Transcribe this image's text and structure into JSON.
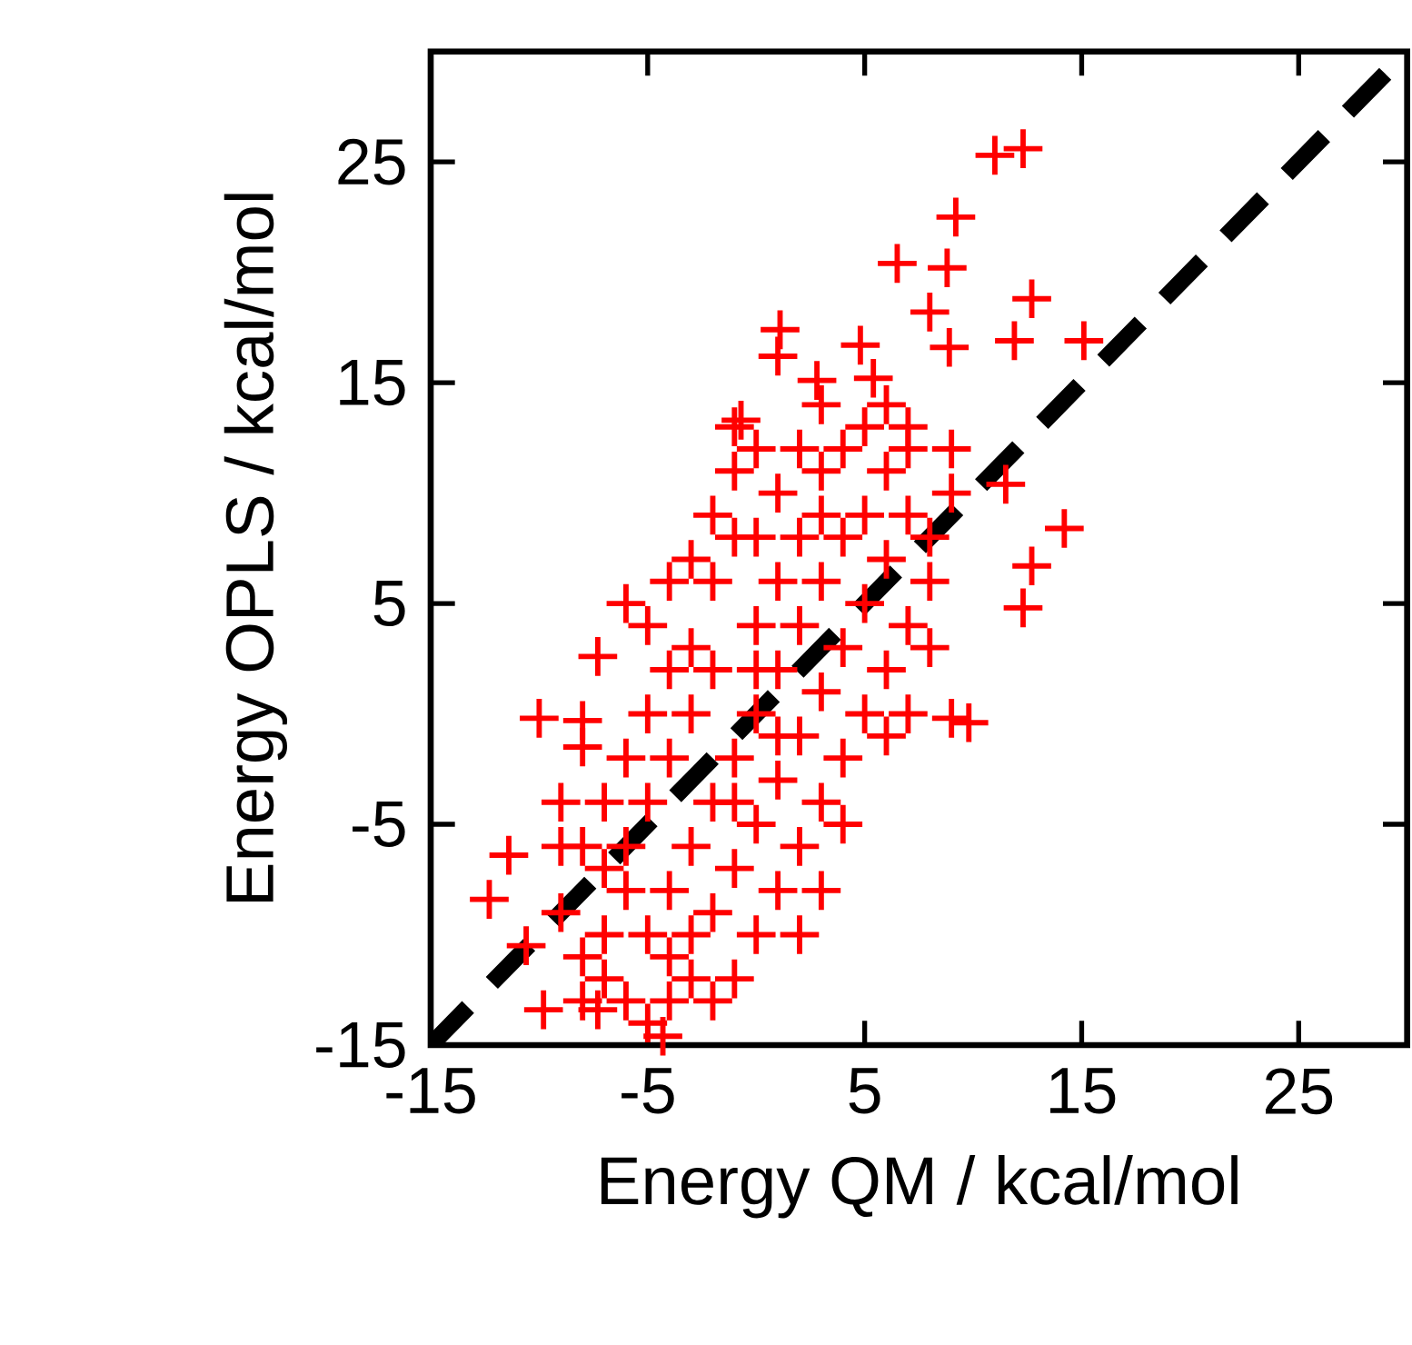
{
  "chart_data": {
    "type": "scatter",
    "xlabel": "Energy QM / kcal/mol",
    "ylabel": "Energy OPLS / kcal/mol",
    "xlim": [
      -15,
      30
    ],
    "ylim": [
      -15,
      30
    ],
    "xticks": [
      -15,
      -5,
      5,
      15,
      25
    ],
    "yticks": [
      -15,
      -5,
      5,
      15,
      25
    ],
    "series": [
      {
        "color": "#ff0000",
        "marker": "cross",
        "x": [
          12.3,
          11.0,
          9.2,
          6.5,
          8.8,
          8.0,
          8.9,
          12.7,
          15.1,
          11.9,
          1.1,
          1.0,
          4.8,
          2.8,
          5.4,
          -0.7,
          14.2,
          11.5,
          12.7,
          12.3,
          9.8,
          9.0,
          -7.3,
          -10.0,
          -8.0,
          -11.4,
          -12.3,
          -10.6,
          -9.8,
          -7.3,
          -4.3,
          -9,
          -8,
          -7,
          -6,
          -5,
          -4,
          -3,
          -2,
          -5,
          -6,
          -7,
          -8,
          -9,
          -7,
          -6,
          -5,
          -4,
          -5,
          -6,
          -4,
          -3,
          -2,
          -1,
          0,
          1,
          2,
          3,
          4,
          5,
          6,
          7,
          7,
          8,
          6,
          5,
          4,
          3,
          2,
          1,
          0,
          -1,
          -2,
          -3,
          -4,
          0,
          1,
          2,
          3,
          4,
          5,
          6,
          7,
          8,
          6,
          4,
          3,
          2,
          -1,
          -3,
          -2,
          -1,
          0,
          1,
          2,
          3,
          4,
          -2,
          -3,
          -4,
          -5,
          -6,
          -4,
          -2,
          0,
          -1,
          1,
          0,
          2,
          3,
          5,
          6,
          9,
          8,
          7,
          9,
          -1,
          1,
          0,
          -3,
          -7,
          -8,
          -1,
          3,
          7,
          -8,
          -9
        ],
        "values": [
          25.6,
          25.3,
          22.5,
          20.4,
          20.2,
          18.2,
          16.6,
          18.8,
          16.9,
          16.9,
          17.4,
          16.2,
          16.7,
          15.1,
          15.2,
          13.3,
          8.4,
          10.4,
          6.7,
          4.8,
          -0.4,
          -0.2,
          2.6,
          -0.2,
          -0.3,
          -6.4,
          -8.4,
          -10.5,
          -13.4,
          -13.4,
          -14.6,
          -9,
          -11,
          -12,
          -13,
          -14,
          -13,
          -12,
          -13,
          -10,
          -8,
          -7,
          -6,
          -4,
          -4,
          -2,
          0,
          2,
          4,
          5,
          6,
          7,
          9,
          11,
          12,
          10,
          12,
          11,
          12,
          13,
          11,
          13,
          9,
          8,
          7,
          5,
          3,
          1,
          -1,
          -3,
          -5,
          -7,
          -9,
          -10,
          -11,
          -10,
          -8,
          -6,
          -4,
          -2,
          0,
          2,
          4,
          6,
          -1,
          -5,
          -8,
          -10,
          -12,
          -6,
          -4,
          -2,
          0,
          2,
          4,
          6,
          8,
          2,
          0,
          -2,
          -4,
          -6,
          -8,
          6,
          4,
          8,
          6,
          8,
          8,
          9,
          9,
          14,
          12,
          3,
          0,
          10,
          -4,
          -1,
          2,
          3,
          -10,
          -13,
          13,
          14,
          12,
          -1.5,
          -6
        ]
      },
      {
        "type": "line",
        "color": "#000000",
        "line_style": "dashed",
        "x": [
          -15,
          30
        ],
        "values": [
          -15,
          30
        ]
      }
    ]
  }
}
